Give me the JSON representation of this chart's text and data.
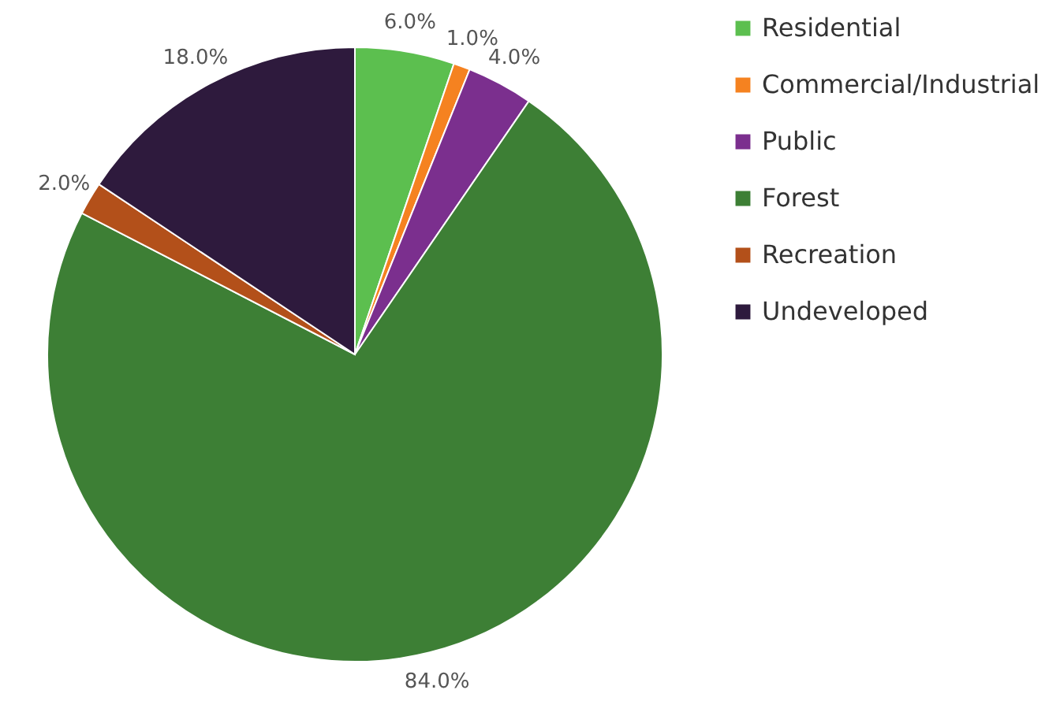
{
  "chart_data": {
    "type": "pie",
    "categories": [
      "Residential",
      "Commercial/Industrial",
      "Public",
      "Forest",
      "Recreation",
      "Undeveloped"
    ],
    "values": [
      6.0,
      1.0,
      4.0,
      84.0,
      2.0,
      18.0
    ],
    "value_labels": [
      "6.0%",
      "1.0%",
      "4.0%",
      "84.0%",
      "2.0%",
      "18.0%"
    ],
    "colors": [
      "#5cbf4f",
      "#f58220",
      "#7b2f8e",
      "#3d7f35",
      "#b3501a",
      "#2e1a3d"
    ],
    "legend": "right"
  }
}
